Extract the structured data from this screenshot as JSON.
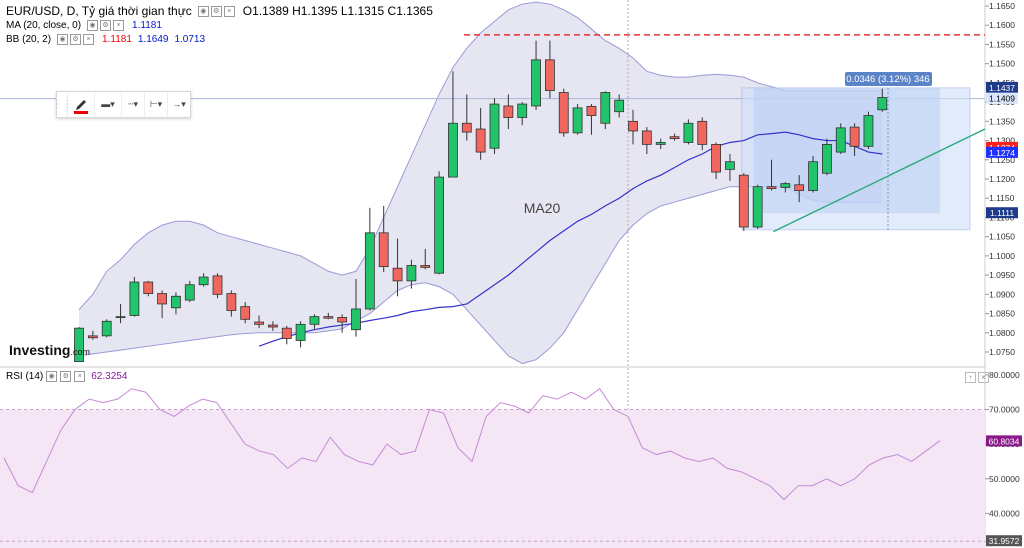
{
  "legend": {
    "symbol": "EUR/USD, D, Tỷ giá thời gian thực",
    "ohlc": "O1.1389 H1.1395 L1.1315 C1.1365",
    "ma_label": "MA (20, close, 0)",
    "ma_value": "1.1181",
    "bb_label": "BB (20, 2)",
    "bb_mid": "1.1181",
    "bb_upper": "1.1649",
    "bb_lower": "1.0713"
  },
  "toolbar_glyphs": {
    "grip": "⋮⋮",
    "line_width": "▬▾",
    "dash": "┄▾",
    "left_end": "⊢▾",
    "right_end": "→▾"
  },
  "rsi": {
    "label": "RSI (14)",
    "value": "62.3254",
    "current_tag": "60.8034",
    "low_tag": "31.9572"
  },
  "logo": {
    "brand": "Investing",
    "suffix": ".com"
  },
  "price_axis": {
    "ticks": [
      "1.1650",
      "1.1600",
      "1.1550",
      "1.1500",
      "1.1450",
      "1.1400",
      "1.1350",
      "1.1300",
      "1.1250",
      "1.1200",
      "1.1150",
      "1.1100",
      "1.1050",
      "1.1000",
      "1.0950",
      "1.0900",
      "1.0850",
      "1.0800",
      "1.0750"
    ],
    "tags": [
      {
        "text": "1.1437",
        "bg": "#1e3a8a",
        "fg": "#ffffff",
        "v": 1.1437
      },
      {
        "text": "1.1409",
        "bg": "#d9e6fb",
        "fg": "#000000",
        "v": 1.1409
      },
      {
        "text": "1.1274",
        "bg": "#ff1f1f",
        "fg": "#ffffff",
        "v": 1.1281
      },
      {
        "text": "1.1274",
        "bg": "#1f32ff",
        "fg": "#ffffff",
        "v": 1.1268
      },
      {
        "text": "1.1111",
        "bg": "#1e3a8a",
        "fg": "#ffffff",
        "v": 1.1111
      }
    ]
  },
  "rsi_axis": {
    "ticks": [
      "80.0000",
      "70.0000",
      "60.0000",
      "50.0000",
      "40.0000"
    ]
  },
  "colors": {
    "up": "#21c46b",
    "down": "#f0675f",
    "ma": "#3333cc",
    "bb_fill": "#e6e6f2",
    "bb_line": "#9a9ad8",
    "rsi_line": "#c58ad6",
    "rsi_band": "#f5e6f5",
    "dashed": "#e33333",
    "trend": "#2aaa7a",
    "measure": "#cfdef9"
  },
  "chart_data": [
    {
      "type": "candlestick",
      "title": "EUR/USD, D, Tỷ giá thời gian thực",
      "ylim": [
        1.0725,
        1.168
      ],
      "annotations": {
        "overlay_label": "MA20",
        "measure_label": "0.0346 (3.12%) 346",
        "resistance": 1.1575
      },
      "candles": [
        {
          "o": 1.0725,
          "h": 1.0815,
          "l": 1.0725,
          "c": 1.0812
        },
        {
          "o": 1.0792,
          "h": 1.0805,
          "l": 1.0782,
          "c": 1.0787
        },
        {
          "o": 1.0792,
          "h": 1.0835,
          "l": 1.0788,
          "c": 1.083
        },
        {
          "o": 1.084,
          "h": 1.0875,
          "l": 1.0825,
          "c": 1.0842
        },
        {
          "o": 1.0845,
          "h": 1.0945,
          "l": 1.0842,
          "c": 1.0932
        },
        {
          "o": 1.0932,
          "h": 1.0935,
          "l": 1.0895,
          "c": 1.0902
        },
        {
          "o": 1.0902,
          "h": 1.091,
          "l": 1.0838,
          "c": 1.0875
        },
        {
          "o": 1.0865,
          "h": 1.0905,
          "l": 1.0848,
          "c": 1.0895
        },
        {
          "o": 1.0885,
          "h": 1.0935,
          "l": 1.088,
          "c": 1.0925
        },
        {
          "o": 1.0925,
          "h": 1.0955,
          "l": 1.092,
          "c": 1.0945
        },
        {
          "o": 1.0948,
          "h": 1.0955,
          "l": 1.089,
          "c": 1.09
        },
        {
          "o": 1.0902,
          "h": 1.091,
          "l": 1.0842,
          "c": 1.0858
        },
        {
          "o": 1.0868,
          "h": 1.088,
          "l": 1.0825,
          "c": 1.0835
        },
        {
          "o": 1.0828,
          "h": 1.0845,
          "l": 1.0812,
          "c": 1.0822
        },
        {
          "o": 1.082,
          "h": 1.083,
          "l": 1.0805,
          "c": 1.0815
        },
        {
          "o": 1.0812,
          "h": 1.0818,
          "l": 1.077,
          "c": 1.0785
        },
        {
          "o": 1.078,
          "h": 1.083,
          "l": 1.0762,
          "c": 1.0822
        },
        {
          "o": 1.0822,
          "h": 1.0848,
          "l": 1.081,
          "c": 1.0842
        },
        {
          "o": 1.0842,
          "h": 1.0852,
          "l": 1.0835,
          "c": 1.0838
        },
        {
          "o": 1.084,
          "h": 1.0848,
          "l": 1.08,
          "c": 1.0828
        },
        {
          "o": 1.0808,
          "h": 1.094,
          "l": 1.079,
          "c": 1.0862
        },
        {
          "o": 1.0862,
          "h": 1.1125,
          "l": 1.0858,
          "c": 1.106
        },
        {
          "o": 1.106,
          "h": 1.113,
          "l": 1.0958,
          "c": 1.0972
        },
        {
          "o": 1.0968,
          "h": 1.1045,
          "l": 1.0895,
          "c": 1.0935
        },
        {
          "o": 1.0935,
          "h": 1.099,
          "l": 1.0915,
          "c": 1.0975
        },
        {
          "o": 1.0975,
          "h": 1.1018,
          "l": 1.0965,
          "c": 1.097
        },
        {
          "o": 1.0955,
          "h": 1.122,
          "l": 1.0952,
          "c": 1.1205
        },
        {
          "o": 1.1205,
          "h": 1.148,
          "l": 1.1205,
          "c": 1.1345
        },
        {
          "o": 1.1345,
          "h": 1.142,
          "l": 1.13,
          "c": 1.1322
        },
        {
          "o": 1.133,
          "h": 1.1385,
          "l": 1.125,
          "c": 1.127
        },
        {
          "o": 1.128,
          "h": 1.141,
          "l": 1.1265,
          "c": 1.1395
        },
        {
          "o": 1.139,
          "h": 1.142,
          "l": 1.133,
          "c": 1.136
        },
        {
          "o": 1.136,
          "h": 1.14,
          "l": 1.134,
          "c": 1.1395
        },
        {
          "o": 1.139,
          "h": 1.156,
          "l": 1.138,
          "c": 1.151
        },
        {
          "o": 1.151,
          "h": 1.156,
          "l": 1.141,
          "c": 1.143
        },
        {
          "o": 1.1425,
          "h": 1.1435,
          "l": 1.131,
          "c": 1.132
        },
        {
          "o": 1.132,
          "h": 1.1395,
          "l": 1.1315,
          "c": 1.1385
        },
        {
          "o": 1.1389,
          "h": 1.1395,
          "l": 1.1315,
          "c": 1.1365
        },
        {
          "o": 1.1345,
          "h": 1.1428,
          "l": 1.133,
          "c": 1.1425
        },
        {
          "o": 1.1375,
          "h": 1.142,
          "l": 1.136,
          "c": 1.1405
        },
        {
          "o": 1.135,
          "h": 1.138,
          "l": 1.129,
          "c": 1.1325
        },
        {
          "o": 1.1325,
          "h": 1.1335,
          "l": 1.1265,
          "c": 1.129
        },
        {
          "o": 1.129,
          "h": 1.1305,
          "l": 1.1278,
          "c": 1.1295
        },
        {
          "o": 1.131,
          "h": 1.1318,
          "l": 1.13,
          "c": 1.1305
        },
        {
          "o": 1.1295,
          "h": 1.1355,
          "l": 1.129,
          "c": 1.1345
        },
        {
          "o": 1.135,
          "h": 1.136,
          "l": 1.1275,
          "c": 1.129
        },
        {
          "o": 1.129,
          "h": 1.1295,
          "l": 1.12,
          "c": 1.1218
        },
        {
          "o": 1.1225,
          "h": 1.1265,
          "l": 1.1195,
          "c": 1.1245
        },
        {
          "o": 1.121,
          "h": 1.1215,
          "l": 1.1065,
          "c": 1.1075
        },
        {
          "o": 1.1075,
          "h": 1.1185,
          "l": 1.107,
          "c": 1.118
        },
        {
          "o": 1.118,
          "h": 1.125,
          "l": 1.117,
          "c": 1.1175
        },
        {
          "o": 1.1178,
          "h": 1.1192,
          "l": 1.1165,
          "c": 1.1188
        },
        {
          "o": 1.1185,
          "h": 1.121,
          "l": 1.114,
          "c": 1.117
        },
        {
          "o": 1.117,
          "h": 1.126,
          "l": 1.1165,
          "c": 1.1245
        },
        {
          "o": 1.1215,
          "h": 1.1305,
          "l": 1.121,
          "c": 1.129
        },
        {
          "o": 1.127,
          "h": 1.1345,
          "l": 1.1265,
          "c": 1.1333
        },
        {
          "o": 1.1335,
          "h": 1.1345,
          "l": 1.126,
          "c": 1.1285
        },
        {
          "o": 1.1285,
          "h": 1.1375,
          "l": 1.1278,
          "c": 1.1365
        },
        {
          "o": 1.138,
          "h": 1.1435,
          "l": 1.1375,
          "c": 1.1412
        }
      ],
      "ma20": [
        1.0765,
        1.0778,
        1.079,
        1.08,
        1.0808,
        1.0815,
        1.082,
        1.0825,
        1.0832,
        1.0838,
        1.0845,
        1.0855,
        1.086,
        1.0866,
        1.0868,
        1.0875,
        1.09,
        1.0925,
        1.095,
        1.098,
        1.101,
        1.104,
        1.1065,
        1.109,
        1.1108,
        1.113,
        1.115,
        1.1175,
        1.1195,
        1.121,
        1.123,
        1.125,
        1.1265,
        1.1285,
        1.1295,
        1.13,
        1.1315,
        1.1318,
        1.1322,
        1.1315,
        1.1305,
        1.13,
        1.13,
        1.1285,
        1.127,
        1.1265
      ],
      "ma20_start": 13,
      "bb_upper": [
        1.086,
        1.09,
        1.096,
        1.099,
        1.103,
        1.106,
        1.108,
        1.109,
        1.109,
        1.108,
        1.106,
        1.105,
        1.104,
        1.103,
        1.102,
        1.101,
        1.1,
        1.098,
        1.096,
        1.095,
        1.096,
        1.102,
        1.11,
        1.118,
        1.126,
        1.134,
        1.142,
        1.149,
        1.154,
        1.158,
        1.161,
        1.164,
        1.1655,
        1.166,
        1.1655,
        1.164,
        1.162,
        1.159,
        1.156,
        1.154,
        1.1515,
        1.148,
        1.147,
        1.1465,
        1.1465,
        1.147,
        1.1472,
        1.147,
        1.1465,
        1.145,
        1.144,
        1.143,
        1.143,
        1.143,
        1.143,
        1.143,
        1.143,
        1.143,
        1.143
      ],
      "bb_lower": [
        1.074,
        1.0745,
        1.075,
        1.0755,
        1.076,
        1.0765,
        1.077,
        1.0775,
        1.078,
        1.0785,
        1.079,
        1.0795,
        1.0798,
        1.08,
        1.08,
        1.08,
        1.08,
        1.08,
        1.0805,
        1.081,
        1.083,
        1.085,
        1.088,
        1.091,
        1.0925,
        1.093,
        1.092,
        1.09,
        1.086,
        1.082,
        1.078,
        1.074,
        1.072,
        1.073,
        1.076,
        1.08,
        1.086,
        1.092,
        1.098,
        1.104,
        1.108,
        1.111,
        1.113,
        1.114,
        1.115,
        1.116,
        1.117,
        1.118,
        1.118,
        1.118,
        1.118,
        1.118,
        1.116,
        1.1145,
        1.114,
        1.114,
        1.114,
        1.114,
        1.114
      ]
    },
    {
      "type": "line",
      "title": "RSI (14)",
      "ylim": [
        30,
        82
      ],
      "levels": [
        70,
        30
      ],
      "values": [
        56,
        48,
        46,
        55,
        64,
        70,
        73,
        72,
        73,
        76,
        75,
        70,
        68,
        71,
        73,
        72,
        66,
        60,
        58,
        57,
        53,
        56,
        55,
        62,
        57,
        55,
        54,
        60,
        57,
        58,
        70,
        69,
        59,
        55,
        68,
        72,
        71,
        69,
        74,
        73,
        75,
        73,
        76,
        70,
        68,
        59,
        57,
        58,
        56,
        55,
        56,
        53,
        52,
        50,
        48,
        44,
        48,
        48,
        50,
        48,
        50,
        54,
        56,
        57,
        55,
        58,
        61
      ]
    }
  ]
}
